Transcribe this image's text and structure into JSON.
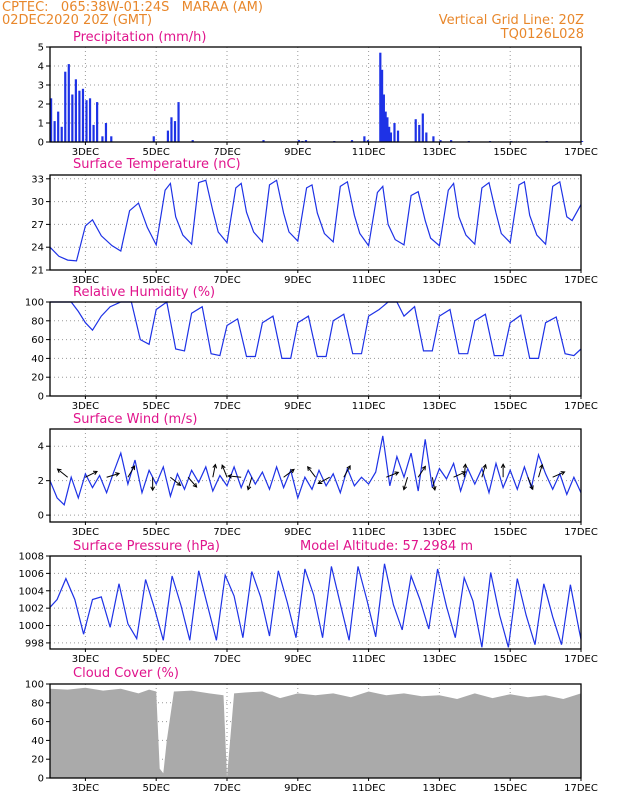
{
  "header": {
    "line1": "CPTEC:   065:38W-01:24S   MARAA (AM)",
    "line2": "02DEC2020 20Z (GMT)",
    "grid_note": "Vertical Grid Line: 20Z",
    "code": "TQ0126L028"
  },
  "colors": {
    "header": "#e8872b",
    "title": "#e0148c",
    "line": "#1e32e6",
    "bar": "#1e32e6",
    "cloud": "#aaaaaa",
    "grid": "#9a9a9a"
  },
  "x_tick_labels": [
    "3DEC",
    "5DEC",
    "7DEC",
    "9DEC",
    "11DEC",
    "13DEC",
    "15DEC",
    "17DEC"
  ],
  "chart_data": [
    {
      "id": "precip",
      "type": "bar",
      "title": "Precipitation (mm/h)",
      "x_unit": "days since 02DEC2020 20Z",
      "x_range": [
        0,
        15
      ],
      "ylim": [
        0,
        5
      ],
      "yticks": [
        0,
        1,
        2,
        3,
        4,
        5
      ],
      "x": [
        0.0,
        0.1,
        0.2,
        0.3,
        0.4,
        0.5,
        0.6,
        0.7,
        0.8,
        0.9,
        1.0,
        1.1,
        1.2,
        1.3,
        1.45,
        1.55,
        1.7,
        2.9,
        3.3,
        3.4,
        3.5,
        3.6,
        4.0,
        6.0,
        7.0,
        7.1,
        7.2,
        8.0,
        8.5,
        8.85,
        8.95,
        9.3,
        9.35,
        9.4,
        9.45,
        9.5,
        9.55,
        9.6,
        9.7,
        9.8,
        10.3,
        10.4,
        10.5,
        10.6,
        10.8,
        11.0,
        11.3,
        11.8,
        12.4,
        13.0,
        14.0,
        15.0
      ],
      "y": [
        2.3,
        1.1,
        1.6,
        0.8,
        3.7,
        4.1,
        2.5,
        3.3,
        2.7,
        2.8,
        2.2,
        2.3,
        0.9,
        2.1,
        0.3,
        1.0,
        0.3,
        0.3,
        0.6,
        1.3,
        1.1,
        2.1,
        0.1,
        0.1,
        0.1,
        0.05,
        0.1,
        0.05,
        0.1,
        0.3,
        0.1,
        4.7,
        3.8,
        2.5,
        1.6,
        1.3,
        0.8,
        0.5,
        1.0,
        0.6,
        1.2,
        0.9,
        1.5,
        0.5,
        0.3,
        0.1,
        0.1,
        0.05,
        0.05,
        0.05,
        0.05,
        0.05
      ]
    },
    {
      "id": "temp",
      "type": "line",
      "title": "Surface Temperature (nC)",
      "x_unit": "days since 02DEC2020 20Z",
      "x_range": [
        0,
        15
      ],
      "ylim": [
        21,
        33.5
      ],
      "yticks": [
        21,
        24,
        27,
        30,
        33
      ],
      "x": [
        0,
        0.25,
        0.5,
        0.75,
        1.0,
        1.2,
        1.45,
        1.75,
        2.0,
        2.25,
        2.5,
        2.75,
        3.0,
        3.25,
        3.4,
        3.55,
        3.75,
        4.0,
        4.2,
        4.4,
        4.6,
        4.75,
        5.0,
        5.25,
        5.4,
        5.55,
        5.75,
        6.0,
        6.2,
        6.4,
        6.6,
        6.75,
        7.0,
        7.25,
        7.4,
        7.55,
        7.75,
        8.0,
        8.2,
        8.4,
        8.6,
        8.75,
        9.0,
        9.25,
        9.4,
        9.55,
        9.75,
        10.0,
        10.2,
        10.4,
        10.6,
        10.75,
        11.0,
        11.25,
        11.4,
        11.55,
        11.75,
        12.0,
        12.2,
        12.4,
        12.6,
        12.75,
        13.0,
        13.25,
        13.4,
        13.55,
        13.75,
        14.0,
        14.2,
        14.4,
        14.6,
        14.75,
        15.0
      ],
      "y": [
        24,
        22.8,
        22.3,
        22.2,
        26.8,
        27.6,
        25.5,
        24.2,
        23.5,
        28.8,
        29.8,
        26.6,
        24.3,
        31.5,
        32.4,
        28.0,
        25.6,
        24.4,
        32.5,
        32.8,
        28.8,
        26.0,
        24.6,
        31.8,
        32.4,
        28.6,
        26.0,
        24.7,
        32.2,
        32.8,
        28.5,
        26.0,
        24.8,
        31.8,
        32.2,
        28.5,
        25.8,
        24.7,
        32.0,
        32.6,
        28.2,
        25.8,
        24.2,
        31.2,
        32.0,
        27.0,
        25.0,
        24.3,
        30.8,
        31.3,
        27.5,
        25.2,
        24.2,
        31.5,
        32.4,
        28.0,
        25.6,
        24.4,
        31.8,
        32.5,
        28.5,
        25.8,
        24.6,
        32.2,
        32.6,
        28.2,
        25.6,
        24.4,
        32.0,
        32.6,
        28.0,
        27.5,
        29.6
      ]
    },
    {
      "id": "rh",
      "type": "line",
      "title": "Relative Humidity (%)",
      "x_unit": "days since 02DEC2020 20Z",
      "x_range": [
        0,
        15
      ],
      "ylim": [
        0,
        100
      ],
      "yticks": [
        0,
        20,
        40,
        60,
        80,
        100
      ],
      "x": [
        0,
        0.3,
        0.6,
        0.8,
        1.0,
        1.2,
        1.45,
        1.7,
        2.0,
        2.3,
        2.55,
        2.8,
        3.0,
        3.3,
        3.55,
        3.8,
        4.0,
        4.3,
        4.55,
        4.8,
        5.0,
        5.3,
        5.55,
        5.8,
        6.0,
        6.3,
        6.55,
        6.8,
        7.0,
        7.3,
        7.55,
        7.8,
        8.0,
        8.3,
        8.55,
        8.8,
        9.0,
        9.3,
        9.55,
        9.8,
        10.0,
        10.3,
        10.55,
        10.8,
        11.0,
        11.3,
        11.55,
        11.8,
        12.0,
        12.3,
        12.55,
        12.8,
        13.0,
        13.3,
        13.55,
        13.8,
        14.0,
        14.3,
        14.55,
        14.8,
        15.0
      ],
      "y": [
        100,
        100,
        100,
        90,
        78,
        70,
        85,
        95,
        100,
        100,
        60,
        55,
        92,
        100,
        50,
        48,
        88,
        95,
        45,
        43,
        75,
        82,
        42,
        42,
        78,
        85,
        40,
        40,
        78,
        85,
        42,
        42,
        80,
        87,
        45,
        45,
        85,
        92,
        100,
        100,
        85,
        95,
        48,
        48,
        85,
        92,
        45,
        45,
        80,
        87,
        43,
        43,
        78,
        86,
        40,
        40,
        78,
        84,
        45,
        43,
        50
      ]
    },
    {
      "id": "wind",
      "type": "line",
      "title": "Surface Wind (m/s)",
      "x_unit": "days since 02DEC2020 20Z",
      "x_range": [
        0,
        15
      ],
      "ylim": [
        -0.4,
        5
      ],
      "yticks": [
        0,
        2,
        4
      ],
      "x": [
        0,
        0.2,
        0.4,
        0.6,
        0.8,
        1.0,
        1.2,
        1.4,
        1.6,
        1.8,
        2.0,
        2.2,
        2.4,
        2.6,
        2.8,
        3.0,
        3.2,
        3.4,
        3.6,
        3.8,
        4.0,
        4.2,
        4.4,
        4.6,
        4.8,
        5.0,
        5.2,
        5.4,
        5.6,
        5.8,
        6.0,
        6.2,
        6.4,
        6.6,
        6.8,
        7.0,
        7.2,
        7.4,
        7.6,
        7.8,
        8.0,
        8.2,
        8.4,
        8.6,
        8.8,
        9.0,
        9.2,
        9.4,
        9.6,
        9.8,
        10.0,
        10.2,
        10.4,
        10.6,
        10.8,
        11.0,
        11.2,
        11.4,
        11.6,
        11.8,
        12.0,
        12.2,
        12.4,
        12.6,
        12.8,
        13.0,
        13.2,
        13.4,
        13.6,
        13.8,
        14.0,
        14.2,
        14.4,
        14.6,
        14.8,
        15.0
      ],
      "y": [
        2.0,
        1.0,
        0.6,
        2.2,
        1.0,
        2.4,
        1.6,
        2.3,
        1.3,
        2.5,
        3.6,
        1.8,
        3.2,
        1.3,
        2.6,
        1.8,
        2.8,
        1.1,
        2.4,
        1.5,
        2.6,
        1.9,
        2.8,
        1.4,
        2.3,
        1.7,
        2.8,
        1.6,
        2.6,
        1.8,
        2.5,
        1.5,
        2.8,
        1.6,
        2.6,
        1.0,
        2.2,
        1.5,
        2.6,
        1.7,
        2.4,
        1.3,
        2.7,
        1.7,
        2.2,
        1.8,
        2.5,
        4.6,
        1.7,
        3.4,
        2.2,
        3.6,
        1.4,
        4.4,
        1.6,
        2.7,
        2.1,
        3.0,
        1.4,
        2.7,
        1.8,
        2.7,
        1.3,
        3.0,
        1.6,
        2.6,
        1.5,
        2.8,
        1.6,
        3.5,
        2.4,
        1.5,
        2.4,
        1.2,
        2.2,
        1.3
      ],
      "arrows": [
        {
          "x": 0.5,
          "dx": -1,
          "dy": 0.8
        },
        {
          "x": 1.0,
          "dx": 1,
          "dy": 0.5
        },
        {
          "x": 1.6,
          "dx": 1,
          "dy": 0.3
        },
        {
          "x": 2.2,
          "dx": 0.6,
          "dy": 1
        },
        {
          "x": 2.9,
          "dx": 0,
          "dy": -1
        },
        {
          "x": 3.4,
          "dx": 1,
          "dy": -0.8
        },
        {
          "x": 3.9,
          "dx": 0.7,
          "dy": -0.8
        },
        {
          "x": 4.6,
          "dx": 0.2,
          "dy": 1
        },
        {
          "x": 5.0,
          "dx": -0.4,
          "dy": 1
        },
        {
          "x": 5.4,
          "dx": -1,
          "dy": 0.1
        },
        {
          "x": 5.7,
          "dx": -0.3,
          "dy": -1
        },
        {
          "x": 6.6,
          "dx": 0.8,
          "dy": 0.6
        },
        {
          "x": 7.5,
          "dx": -0.6,
          "dy": 0.8
        },
        {
          "x": 7.9,
          "dx": -0.9,
          "dy": -0.5
        },
        {
          "x": 8.3,
          "dx": 0.5,
          "dy": 0.9
        },
        {
          "x": 9.5,
          "dx": 1,
          "dy": 0.4
        },
        {
          "x": 10.1,
          "dx": -0.3,
          "dy": -1
        },
        {
          "x": 10.4,
          "dx": 0.6,
          "dy": 0.9
        },
        {
          "x": 10.8,
          "dx": 0.2,
          "dy": -1
        },
        {
          "x": 11.4,
          "dx": 0.9,
          "dy": 0.4
        },
        {
          "x": 11.7,
          "dx": 0.1,
          "dy": 1
        },
        {
          "x": 12.2,
          "dx": 0.3,
          "dy": 1
        },
        {
          "x": 12.8,
          "dx": 0,
          "dy": 1
        },
        {
          "x": 13.5,
          "dx": 0.4,
          "dy": -1
        },
        {
          "x": 13.8,
          "dx": 0.3,
          "dy": 1
        },
        {
          "x": 14.2,
          "dx": 0.9,
          "dy": 0.4
        }
      ]
    },
    {
      "id": "pres",
      "type": "line",
      "title": "Surface Pressure (hPa)",
      "note": "Model Altitude: 57.2984 m",
      "x_unit": "days since 02DEC2020 20Z",
      "x_range": [
        0,
        15
      ],
      "ylim": [
        997.3,
        1008
      ],
      "yticks": [
        998,
        1000,
        1002,
        1004,
        1006,
        1008
      ],
      "x": [
        0,
        0.2,
        0.45,
        0.7,
        0.95,
        1.2,
        1.45,
        1.7,
        1.95,
        2.2,
        2.45,
        2.7,
        2.95,
        3.2,
        3.45,
        3.7,
        3.95,
        4.2,
        4.45,
        4.7,
        4.95,
        5.2,
        5.45,
        5.7,
        5.95,
        6.2,
        6.45,
        6.7,
        6.95,
        7.2,
        7.45,
        7.7,
        7.95,
        8.2,
        8.45,
        8.7,
        8.95,
        9.2,
        9.45,
        9.7,
        9.95,
        10.2,
        10.45,
        10.7,
        10.95,
        11.2,
        11.45,
        11.7,
        11.95,
        12.2,
        12.45,
        12.7,
        12.95,
        13.2,
        13.45,
        13.7,
        13.95,
        14.2,
        14.45,
        14.7,
        14.95,
        15.0
      ],
      "y": [
        1002.1,
        1003.0,
        1005.4,
        1003.0,
        999.0,
        1003.0,
        1003.3,
        999.8,
        1004.8,
        1000.2,
        998.5,
        1005.3,
        1002.0,
        998.3,
        1005.7,
        1002.3,
        998.3,
        1006.3,
        1002.3,
        998.3,
        1005.8,
        1003.4,
        998.6,
        1006.2,
        1003.3,
        998.8,
        1006.3,
        1002.7,
        998.6,
        1006.5,
        1003.5,
        998.6,
        1006.8,
        1002.5,
        998.3,
        1006.8,
        1003.0,
        998.7,
        1007.1,
        1002.4,
        999.5,
        1005.7,
        1003.0,
        999.6,
        1006.5,
        1002.2,
        998.6,
        1005.5,
        1002.8,
        997.5,
        1006.1,
        1001.2,
        997.5,
        1005.4,
        1001.2,
        997.8,
        1004.8,
        1001.0,
        997.8,
        1004.7,
        999.4,
        998.4
      ]
    },
    {
      "id": "cloud",
      "type": "area",
      "title": "Cloud Cover (%)",
      "x_unit": "days since 02DEC2020 20Z",
      "x_range": [
        0,
        15
      ],
      "ylim": [
        0,
        100
      ],
      "yticks": [
        0,
        20,
        40,
        60,
        80,
        100
      ],
      "x": [
        0,
        0.5,
        1.0,
        1.5,
        2.0,
        2.5,
        2.8,
        3.0,
        3.1,
        3.2,
        3.3,
        3.5,
        4.0,
        4.5,
        4.9,
        5.0,
        5.2,
        5.5,
        6.0,
        6.5,
        7.0,
        7.5,
        8.0,
        8.5,
        9.0,
        9.5,
        10.0,
        10.5,
        11.0,
        11.5,
        12.0,
        12.5,
        13.0,
        13.5,
        14.0,
        14.5,
        15.0
      ],
      "y": [
        95,
        94,
        96,
        93,
        95,
        90,
        94,
        92,
        10,
        5,
        40,
        92,
        93,
        90,
        88,
        1,
        90,
        91,
        92,
        85,
        90,
        88,
        90,
        86,
        92,
        88,
        90,
        87,
        88,
        84,
        90,
        85,
        89,
        86,
        88,
        84,
        90
      ]
    }
  ]
}
